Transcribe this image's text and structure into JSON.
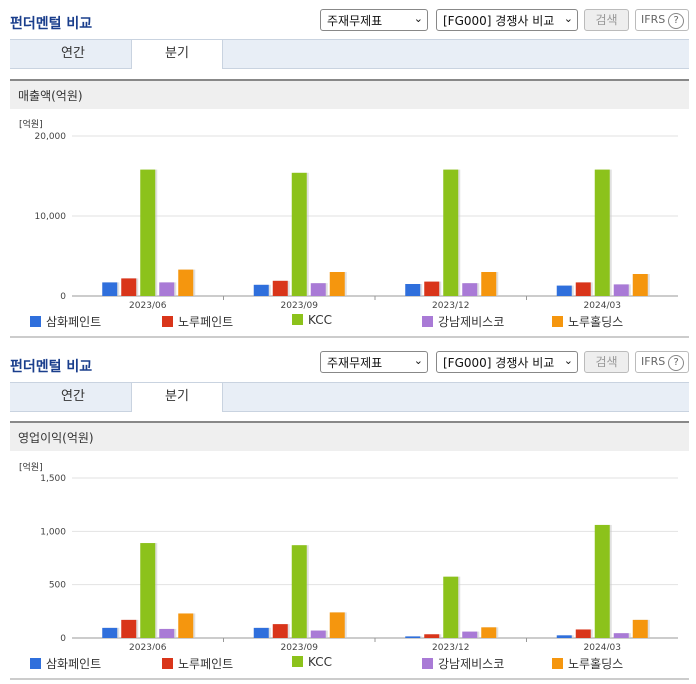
{
  "panels": [
    {
      "title": "펀더멘털 비교",
      "select1": "주재무제표",
      "select2": "[FG000] 경쟁사 비교",
      "search_button": "검색",
      "ifrs": "IFRS",
      "ifrs_help": "?",
      "tabs": [
        "연간",
        "분기"
      ],
      "section_title": "매출액(억원)",
      "unit": "[억원]",
      "chart_data": {
        "type": "bar",
        "categories": [
          "2023/06",
          "2023/09",
          "2023/12",
          "2024/03"
        ],
        "ylim": [
          0,
          20000
        ],
        "yticks": [
          "20,000",
          "10,000",
          "0"
        ],
        "series": [
          {
            "name": "삼화페인트",
            "color": "#2f6fdc",
            "values": [
              1700,
              1400,
              1500,
              1300
            ]
          },
          {
            "name": "노루페인트",
            "color": "#d9351a",
            "values": [
              2200,
              1900,
              1800,
              1700
            ]
          },
          {
            "name": "KCC",
            "color": "#8cc21b",
            "values": [
              15800,
              15400,
              15800,
              15800
            ]
          },
          {
            "name": "강남제비스코",
            "color": "#a97ad6",
            "values": [
              1700,
              1600,
              1600,
              1450
            ]
          },
          {
            "name": "노루홀딩스",
            "color": "#f5960e",
            "values": [
              3300,
              3000,
              3000,
              2750
            ]
          }
        ]
      }
    },
    {
      "title": "펀더멘털 비교",
      "select1": "주재무제표",
      "select2": "[FG000] 경쟁사 비교",
      "search_button": "검색",
      "ifrs": "IFRS",
      "ifrs_help": "?",
      "tabs": [
        "연간",
        "분기"
      ],
      "section_title": "영업이익(억원)",
      "unit": "[억원]",
      "chart_data": {
        "type": "bar",
        "categories": [
          "2023/06",
          "2023/09",
          "2023/12",
          "2024/03"
        ],
        "ylim": [
          0,
          1500
        ],
        "yticks": [
          "1,500",
          "1,000",
          "500",
          "0"
        ],
        "series": [
          {
            "name": "삼화페인트",
            "color": "#2f6fdc",
            "values": [
              95,
              95,
              15,
              25
            ]
          },
          {
            "name": "노루페인트",
            "color": "#d9351a",
            "values": [
              170,
              130,
              35,
              80
            ]
          },
          {
            "name": "KCC",
            "color": "#8cc21b",
            "values": [
              890,
              870,
              575,
              1060
            ]
          },
          {
            "name": "강남제비스코",
            "color": "#a97ad6",
            "values": [
              85,
              70,
              60,
              45
            ]
          },
          {
            "name": "노루홀딩스",
            "color": "#f5960e",
            "values": [
              230,
              240,
              100,
              170
            ]
          }
        ]
      }
    }
  ]
}
